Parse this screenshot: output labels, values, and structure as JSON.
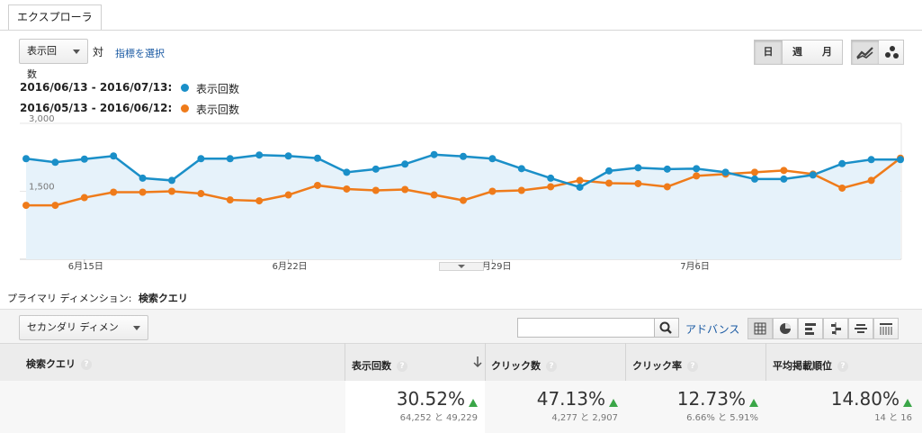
{
  "tab": {
    "label": "エクスプローラ"
  },
  "metric_select": {
    "value": "表示回数"
  },
  "vs_label": "対",
  "choose_metric": "指標を選択",
  "period_buttons": [
    "日",
    "週",
    "月"
  ],
  "legend": [
    {
      "range": "2016/06/13 - 2016/07/13:",
      "metric": "表示回数",
      "color": "#1a8fc8"
    },
    {
      "range": "2016/05/13 - 2016/06/12:",
      "metric": "表示回数",
      "color": "#ef7b1a"
    }
  ],
  "chart_data": {
    "type": "line",
    "x": [
      "6/13",
      "6/14",
      "6/15",
      "6/16",
      "6/17",
      "6/18",
      "6/19",
      "6/20",
      "6/21",
      "6/22",
      "6/23",
      "6/24",
      "6/25",
      "6/26",
      "6/27",
      "6/28",
      "6/29",
      "6/30",
      "7/1",
      "7/2",
      "7/3",
      "7/4",
      "7/5",
      "7/6",
      "7/7",
      "7/8",
      "7/9",
      "7/10",
      "7/11",
      "7/12",
      "7/13"
    ],
    "y_ticks": [
      "3,000",
      "1,500"
    ],
    "x_tick_labels": [
      "6月15日",
      "6月22日",
      "6月29日",
      "7月6日"
    ],
    "ylim": [
      0,
      3000
    ],
    "series": [
      {
        "values": [
          2220,
          2140,
          2210,
          2280,
          1790,
          1740,
          2220,
          2220,
          2300,
          2280,
          2230,
          1920,
          1990,
          2100,
          2310,
          2270,
          2220,
          2000,
          1790,
          1590,
          1950,
          2020,
          1990,
          2000,
          1920,
          1770,
          1770,
          1860,
          2110,
          2200,
          2200
        ],
        "color": "#1a8fc8"
      },
      {
        "values": [
          1190,
          1190,
          1360,
          1480,
          1480,
          1500,
          1450,
          1310,
          1290,
          1420,
          1630,
          1550,
          1520,
          1540,
          1420,
          1300,
          1500,
          1520,
          1600,
          1740,
          1680,
          1670,
          1600,
          1840,
          1880,
          1920,
          1960,
          1880,
          1570,
          1740,
          2230
        ],
        "color": "#ef7b1a"
      }
    ]
  },
  "primary_dimension": {
    "label": "プライマリ ディメンション:",
    "value": "検索クエリ"
  },
  "secondary_dimension": "セカンダリ ディメンション",
  "search": {
    "value": "",
    "placeholder": ""
  },
  "advanced": "アドバンス",
  "table": {
    "columns": [
      "検索クエリ",
      "表示回数",
      "クリック数",
      "クリック率",
      "平均掲載順位"
    ],
    "summary": [
      {
        "value": "30.52%",
        "detail": "64,252 と 49,229"
      },
      {
        "value": "47.13%",
        "detail": "4,277 と 2,907"
      },
      {
        "value": "12.73%",
        "detail": "6.66% と 5.91%"
      },
      {
        "value": "14.80%",
        "detail": "14 と 16"
      }
    ]
  }
}
